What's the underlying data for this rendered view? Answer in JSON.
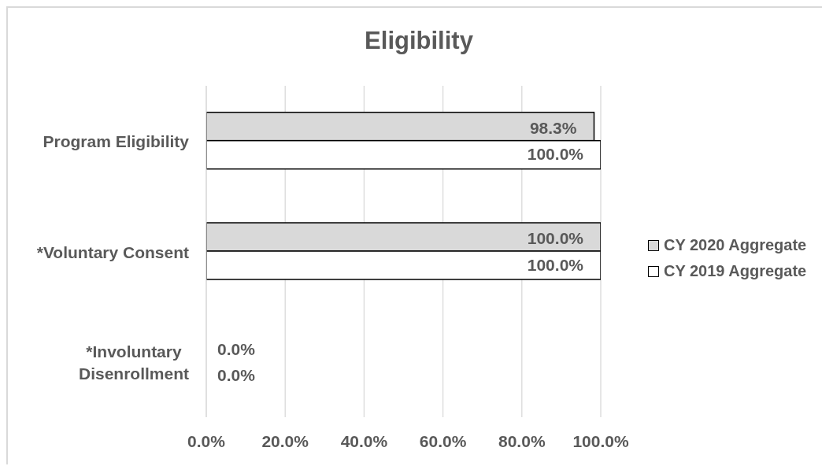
{
  "chart_data": {
    "type": "bar",
    "orientation": "horizontal",
    "title": "Eligibility",
    "categories": [
      "Program Eligibility",
      "*Voluntary Consent",
      "*Involuntary Disenrollment"
    ],
    "series": [
      {
        "name": "CY 2020 Aggregate",
        "color": "#d9d9d9",
        "values": [
          98.3,
          100,
          0
        ],
        "value_labels": [
          "98.3%",
          "100.0%",
          "0.0%"
        ]
      },
      {
        "name": "CY 2019 Aggregate",
        "color": "#ffffff",
        "values": [
          100,
          100,
          0
        ],
        "value_labels": [
          "100.0%",
          "100.0%",
          "0.0%"
        ]
      }
    ],
    "xlim": [
      0,
      100
    ],
    "xticks": [
      {
        "value": 0,
        "label": "0.0%"
      },
      {
        "value": 20,
        "label": "20.0%"
      },
      {
        "value": 40,
        "label": "40.0%"
      },
      {
        "value": 60,
        "label": "60.0%"
      },
      {
        "value": 80,
        "label": "80.0%"
      },
      {
        "value": 100,
        "label": "100.0%"
      }
    ],
    "grid": "x",
    "legend": "right"
  }
}
